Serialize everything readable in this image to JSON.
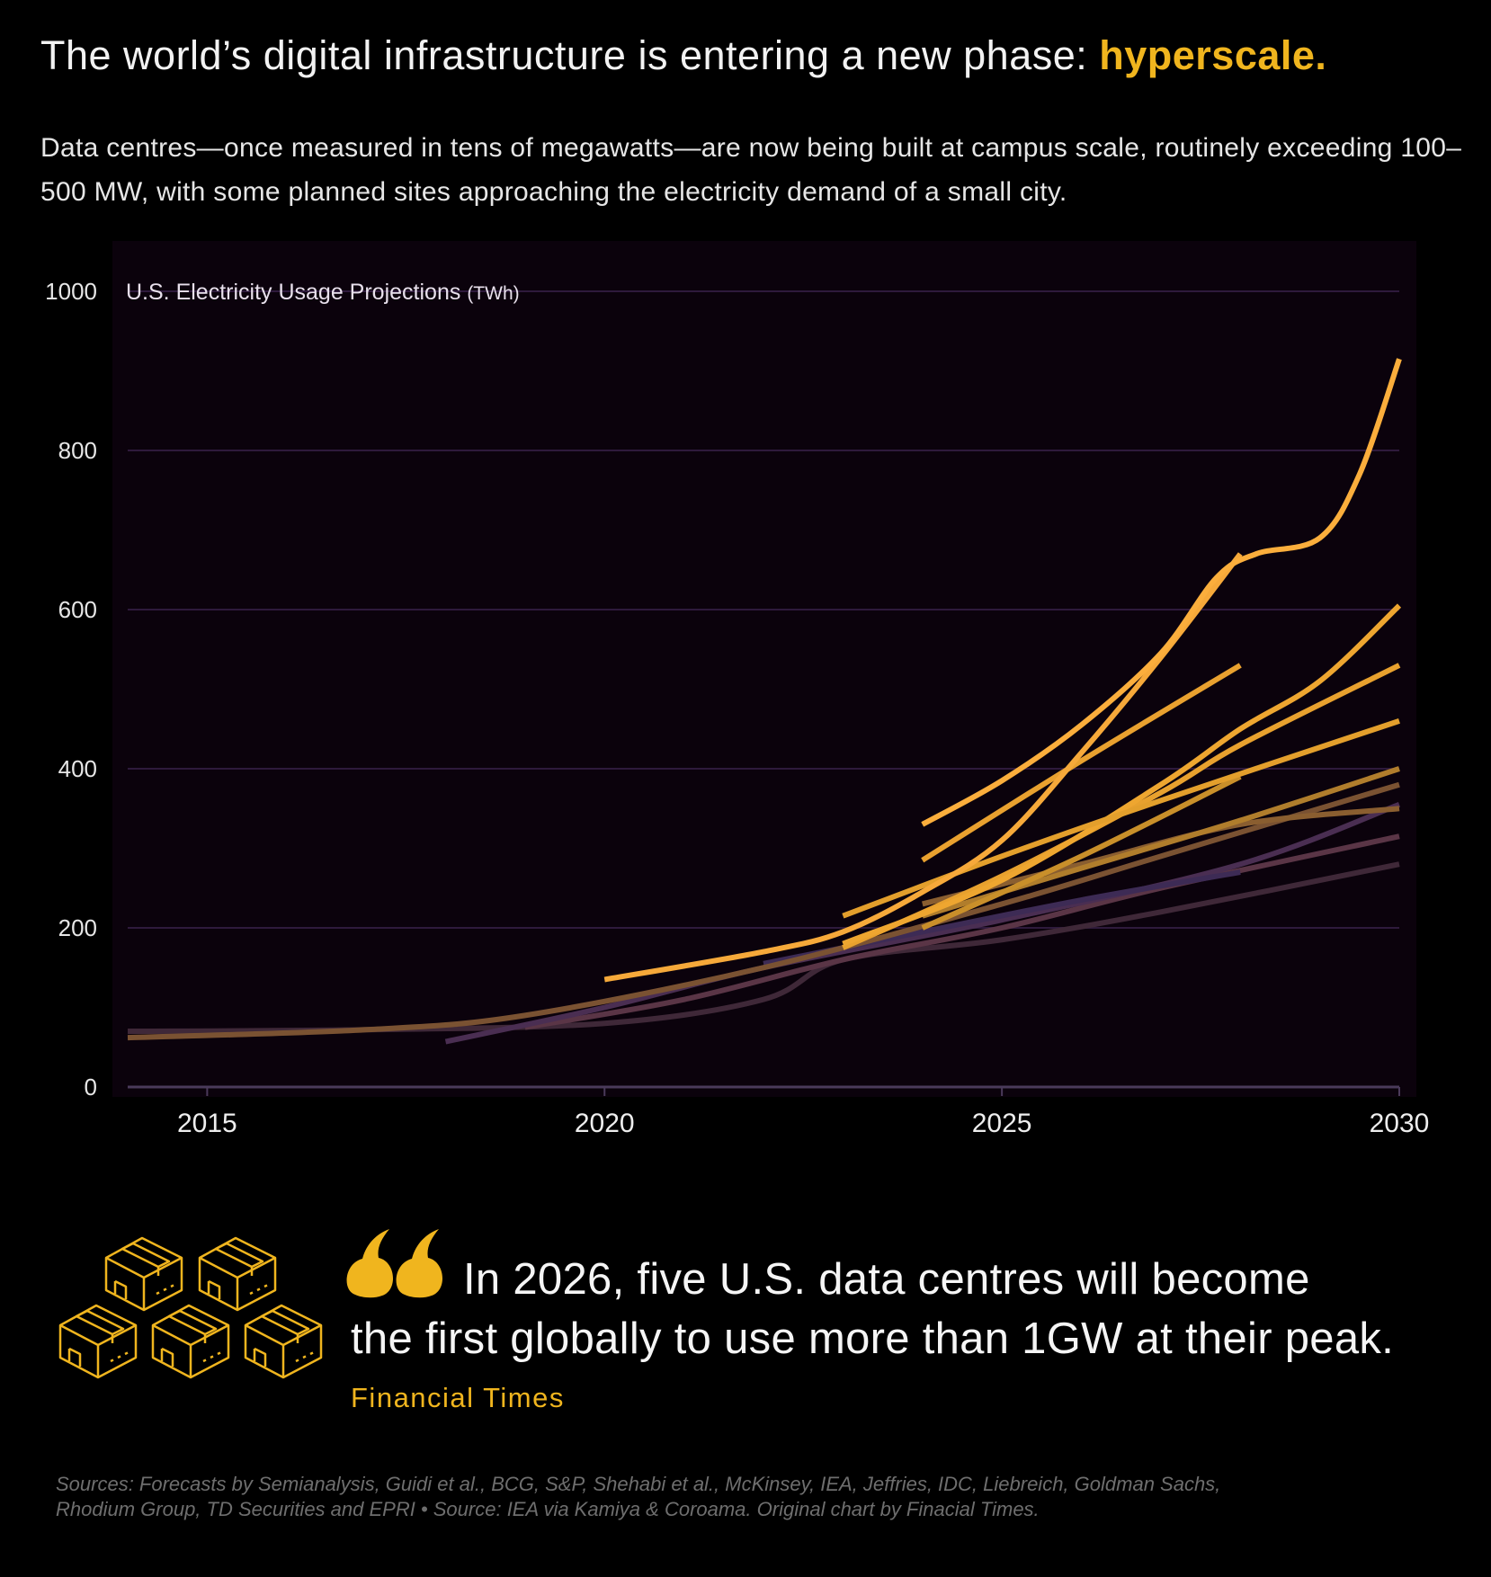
{
  "header": {
    "title": "The world’s digital infrastructure is entering a new phase: ",
    "title_highlight": "hyperscale.",
    "subtitle": "Data centres—once measured in tens of megawatts—are now being built at campus scale, routinely exceeding 100–500 MW, with some planned sites approaching the electricity demand of a small city."
  },
  "colors": {
    "accent": "#f0b51e",
    "background": "#000000",
    "plot_background": "#0b020c",
    "grid": "#2e1a3c"
  },
  "chart_data": {
    "type": "line",
    "title": "U.S. Electricity Usage Projections",
    "title_unit": "(TWh)",
    "xlim": [
      2014,
      2030
    ],
    "ylim": [
      0,
      1000
    ],
    "x_ticks": [
      2015,
      2020,
      2025,
      2030
    ],
    "y_ticks": [
      0,
      200,
      400,
      600,
      800,
      1000
    ],
    "grid": "horizontal",
    "series": [
      {
        "color": "#3f2838",
        "points": [
          [
            2014,
            70
          ],
          [
            2017,
            72
          ],
          [
            2020,
            80
          ],
          [
            2022,
            110
          ],
          [
            2023,
            160
          ],
          [
            2025,
            185
          ],
          [
            2027,
            220
          ],
          [
            2030,
            280
          ]
        ]
      },
      {
        "color": "#5a3546",
        "points": [
          [
            2019,
            75
          ],
          [
            2021,
            110
          ],
          [
            2023,
            160
          ],
          [
            2025,
            200
          ],
          [
            2027,
            250
          ],
          [
            2030,
            315
          ]
        ]
      },
      {
        "color": "#4a2e52",
        "points": [
          [
            2018,
            57
          ],
          [
            2020,
            100
          ],
          [
            2022,
            150
          ],
          [
            2025,
            210
          ],
          [
            2028,
            280
          ],
          [
            2030,
            355
          ]
        ]
      },
      {
        "color": "#3d2b55",
        "points": [
          [
            2022,
            155
          ],
          [
            2024,
            195
          ],
          [
            2026,
            235
          ],
          [
            2028,
            270
          ]
        ]
      },
      {
        "color": "#7a5232",
        "points": [
          [
            2014,
            62
          ],
          [
            2017,
            72
          ],
          [
            2019,
            90
          ],
          [
            2022,
            150
          ],
          [
            2025,
            230
          ],
          [
            2027,
            290
          ],
          [
            2030,
            380
          ]
        ]
      },
      {
        "color": "#8a5e30",
        "points": [
          [
            2024,
            230
          ],
          [
            2026,
            280
          ],
          [
            2028,
            330
          ],
          [
            2030,
            350
          ]
        ]
      },
      {
        "color": "#b07d2c",
        "points": [
          [
            2024,
            215
          ],
          [
            2026,
            275
          ],
          [
            2028,
            335
          ],
          [
            2030,
            400
          ]
        ]
      },
      {
        "color": "#c98f2a",
        "points": [
          [
            2024,
            200
          ],
          [
            2026,
            290
          ],
          [
            2028,
            390
          ]
        ]
      },
      {
        "color": "#e8a12e",
        "points": [
          [
            2023,
            175
          ],
          [
            2025,
            265
          ],
          [
            2027,
            370
          ],
          [
            2028,
            430
          ],
          [
            2030,
            530
          ]
        ]
      },
      {
        "color": "#eea630",
        "points": [
          [
            2023,
            180
          ],
          [
            2025,
            260
          ],
          [
            2027,
            380
          ],
          [
            2028,
            450
          ],
          [
            2029,
            510
          ],
          [
            2030,
            605
          ]
        ]
      },
      {
        "color": "#e39f2c",
        "points": [
          [
            2023,
            215
          ],
          [
            2025,
            290
          ],
          [
            2027,
            360
          ],
          [
            2030,
            460
          ]
        ]
      },
      {
        "color": "#e9a12f",
        "points": [
          [
            2024,
            285
          ],
          [
            2026,
            410
          ],
          [
            2028,
            530
          ]
        ]
      },
      {
        "color": "#f6a93a",
        "points": [
          [
            2020,
            135
          ],
          [
            2022,
            170
          ],
          [
            2023,
            195
          ],
          [
            2024,
            245
          ],
          [
            2025,
            310
          ],
          [
            2026,
            420
          ],
          [
            2027,
            540
          ],
          [
            2028,
            670
          ]
        ]
      },
      {
        "color": "#fbae3c",
        "points": [
          [
            2024,
            330
          ],
          [
            2025,
            385
          ],
          [
            2026,
            455
          ],
          [
            2027,
            545
          ],
          [
            2027.7,
            640
          ],
          [
            2028.2,
            670
          ],
          [
            2029,
            690
          ],
          [
            2029.5,
            770
          ],
          [
            2030,
            915
          ]
        ]
      }
    ]
  },
  "quote": {
    "line1": "In 2026, five U.S. data centres will become",
    "line2": "the first globally to use more than 1GW at their peak.",
    "attribution": "Financial Times",
    "icon": "data-centre-building-icon"
  },
  "footer": {
    "line1": "Sources: Forecasts by Semianalysis, Guidi et al., BCG, S&P, Shehabi et al., McKinsey, IEA, Jeffries, IDC, Liebreich, Goldman Sachs,",
    "line2": "Rhodium Group, TD Securities and EPRI • Source: IEA via Kamiya & Coroama. Original chart by Finacial Times."
  }
}
